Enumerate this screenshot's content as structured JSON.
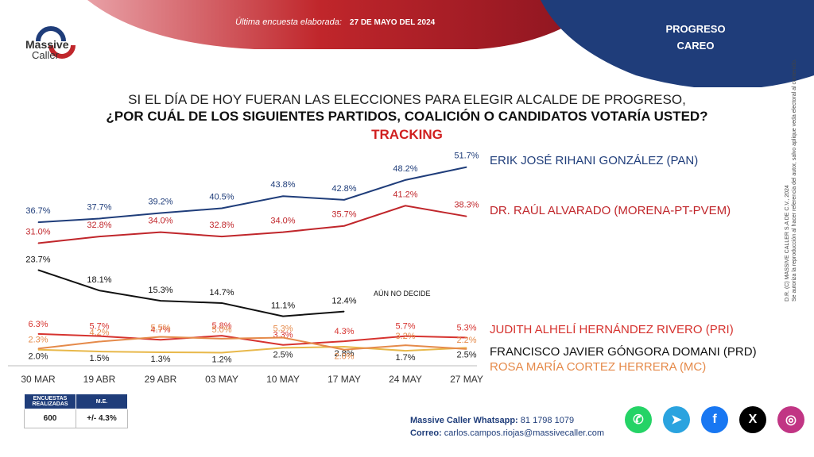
{
  "brand": {
    "name_line1": "Massive",
    "name_line2": "Caller"
  },
  "header": {
    "survey_label": "Última encuesta elaborada:",
    "survey_date": "27 DE MAYO DEL 2024",
    "region_line1": "PROGRESO",
    "region_line2": "CAREO"
  },
  "question": {
    "line1": "SI EL DÍA DE HOY FUERAN LAS ELECCIONES PARA ELEGIR ALCALDE DE PROGRESO,",
    "line2": "¿POR CUÁL DE LOS SIGUIENTES PARTIDOS, COALICIÓN O CANDIDATOS VOTARÍA USTED?",
    "line3": "TRACKING"
  },
  "side_note": {
    "line1": "D.R. (C) MASSIVE CALLER S.A DE C.V., 2024",
    "line2": "Se autoriza la reproducción al hacer referencia del autor, salvo aplique veda electoral al contenido."
  },
  "chart_data": {
    "type": "line",
    "x": [
      "30 MAR",
      "19 ABR",
      "29 ABR",
      "03 MAY",
      "10 MAY",
      "17 MAY",
      "24 MAY",
      "27 MAY"
    ],
    "series": [
      {
        "name": "ERIK JOSÉ RIHANI GONZÁLEZ (PAN)",
        "color": "#1f3d7a",
        "values": [
          36.7,
          37.7,
          39.2,
          40.5,
          43.8,
          42.8,
          48.2,
          51.7
        ]
      },
      {
        "name": "DR. RAÚL ALVARADO (MORENA-PT-PVEM)",
        "color": "#c0262b",
        "values": [
          31.0,
          32.8,
          34.0,
          32.8,
          34.0,
          35.7,
          41.2,
          38.3
        ]
      },
      {
        "name": "AÚN NO DECIDE",
        "color": "#111111",
        "values": [
          23.7,
          18.1,
          15.3,
          14.7,
          11.1,
          12.4,
          null,
          null
        ]
      },
      {
        "name": "JUDITH ALHELÍ HERNÁNDEZ RIVERO (PRI)",
        "color": "#d6332f",
        "values": [
          6.3,
          5.7,
          4.7,
          5.8,
          3.3,
          4.3,
          5.7,
          5.3
        ]
      },
      {
        "name": "FRANCISCO JAVIER GÓNGORA DOMANI (PRD)",
        "color": "#e8b84a",
        "values": [
          2.0,
          1.5,
          1.3,
          1.2,
          2.5,
          2.8,
          1.7,
          2.5
        ]
      },
      {
        "name": "ROSA MARÍA CORTEZ HERRERA (MC)",
        "color": "#e58a4a",
        "values": [
          2.3,
          4.2,
          5.5,
          5.0,
          5.3,
          2.0,
          3.2,
          2.2
        ]
      }
    ]
  },
  "sample_table": {
    "col1": "ENCUESTAS REALIZADAS",
    "col2": "M.E.",
    "val1": "600",
    "val2": "+/- 4.3%"
  },
  "contact": {
    "whatsapp_label": "Massive Caller Whatsapp:",
    "whatsapp": "81 1798 1079",
    "email_label": "Correo:",
    "email": "carlos.campos.riojas@massivecaller.com"
  },
  "socials": [
    {
      "icon": "whatsapp-icon",
      "color": "#25d366",
      "glyph": "✆"
    },
    {
      "icon": "telegram-icon",
      "color": "#2aa3df",
      "glyph": "➤"
    },
    {
      "icon": "facebook-icon",
      "color": "#1877f2",
      "glyph": "f"
    },
    {
      "icon": "x-icon",
      "color": "#000000",
      "glyph": "X"
    },
    {
      "icon": "instagram-icon",
      "color": "#c13584",
      "glyph": "◎"
    }
  ]
}
